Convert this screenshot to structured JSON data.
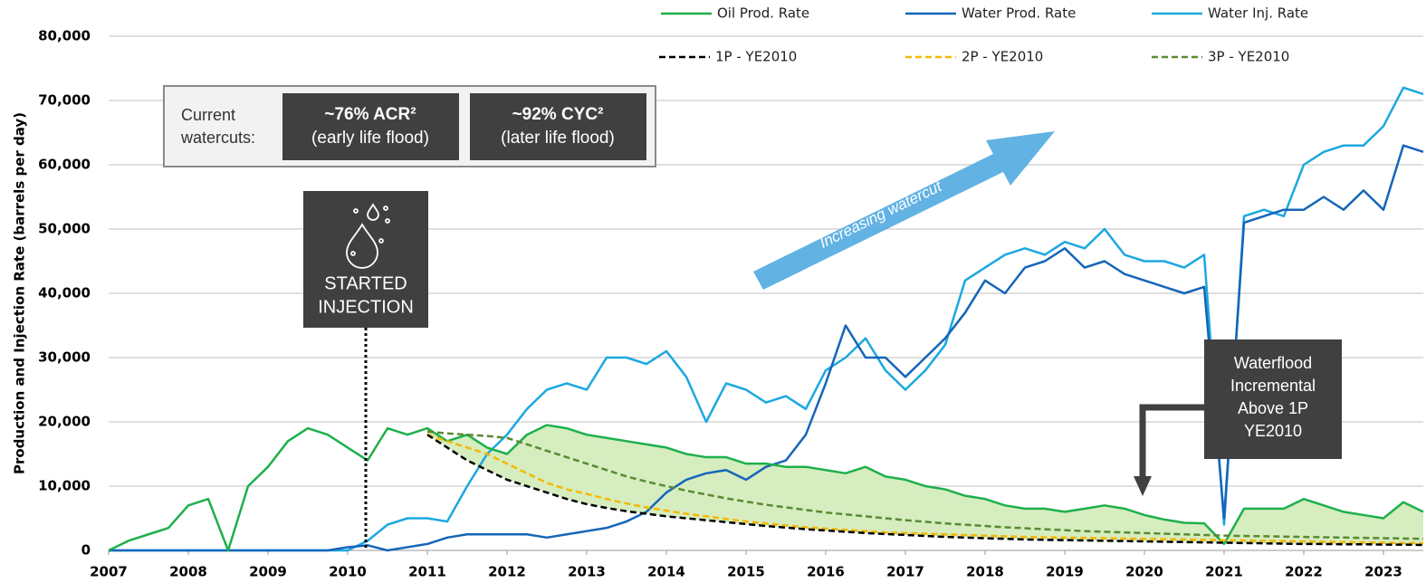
{
  "chart_data": {
    "type": "line",
    "y_label": "Production and Injection Rate (barrels per day)",
    "x": [
      2007,
      2007.25,
      2007.5,
      2007.75,
      2008,
      2008.25,
      2008.5,
      2008.75,
      2009,
      2009.25,
      2009.5,
      2009.75,
      2010,
      2010.25,
      2010.5,
      2010.75,
      2011,
      2011.25,
      2011.5,
      2011.75,
      2012,
      2012.25,
      2012.5,
      2012.75,
      2013,
      2013.25,
      2013.5,
      2013.75,
      2014,
      2014.25,
      2014.5,
      2014.75,
      2015,
      2015.25,
      2015.5,
      2015.75,
      2016,
      2016.25,
      2016.5,
      2016.75,
      2017,
      2017.25,
      2017.5,
      2017.75,
      2018,
      2018.25,
      2018.5,
      2018.75,
      2019,
      2019.25,
      2019.5,
      2019.75,
      2020,
      2020.25,
      2020.5,
      2020.75,
      2021,
      2021.25,
      2021.5,
      2021.75,
      2022,
      2022.25,
      2022.5,
      2022.75,
      2023,
      2023.25,
      2023.5
    ],
    "series": [
      {
        "name": "Oil Prod. Rate",
        "color": "#1db04b",
        "dashed": false,
        "values": [
          0,
          1500,
          2500,
          3500,
          7000,
          8000,
          0,
          10000,
          13000,
          17000,
          19000,
          18000,
          16000,
          14000,
          19000,
          18000,
          19000,
          17000,
          18000,
          16000,
          15000,
          18000,
          19500,
          19000,
          18000,
          17500,
          17000,
          16500,
          16000,
          15000,
          14500,
          14500,
          13500,
          13500,
          13000,
          13000,
          12500,
          12000,
          13000,
          11500,
          11000,
          10000,
          9500,
          8500,
          8000,
          7000,
          6500,
          6500,
          6000,
          6500,
          7000,
          6500,
          5500,
          4800,
          4300,
          4200,
          1000,
          6500,
          6500,
          6500,
          8000,
          7000,
          6000,
          5500,
          5000,
          7500,
          6000
        ]
      },
      {
        "name": "Water Prod. Rate",
        "color": "#1565b8",
        "dashed": false,
        "values": [
          0,
          0,
          0,
          0,
          0,
          0,
          0,
          0,
          0,
          0,
          0,
          0,
          500,
          800,
          0,
          500,
          1000,
          2000,
          2500,
          2500,
          2500,
          2500,
          2000,
          2500,
          3000,
          3500,
          4500,
          6000,
          9000,
          11000,
          12000,
          12500,
          11000,
          13000,
          14000,
          18000,
          26000,
          35000,
          30000,
          30000,
          27000,
          30000,
          33000,
          37000,
          42000,
          40000,
          44000,
          45000,
          47000,
          44000,
          45000,
          43000,
          42000,
          41000,
          40000,
          41000,
          5000,
          51000,
          52000,
          53000,
          53000,
          55000,
          53000,
          56000,
          53000,
          63000,
          62000
        ]
      },
      {
        "name": "Water Inj. Rate",
        "color": "#1ca8e0",
        "dashed": false,
        "values": [
          0,
          0,
          0,
          0,
          0,
          0,
          0,
          0,
          0,
          0,
          0,
          0,
          0,
          1500,
          4000,
          5000,
          5000,
          4500,
          10000,
          15000,
          18000,
          22000,
          25000,
          26000,
          25000,
          30000,
          30000,
          29000,
          31000,
          27000,
          20000,
          26000,
          25000,
          23000,
          24000,
          22000,
          28000,
          30000,
          33000,
          28000,
          25000,
          28000,
          32000,
          42000,
          44000,
          46000,
          47000,
          46000,
          48000,
          47000,
          50000,
          46000,
          45000,
          45000,
          44000,
          46000,
          4000,
          52000,
          53000,
          52000,
          60000,
          62000,
          63000,
          63000,
          66000,
          72000,
          71000
        ]
      },
      {
        "name": "1P - YE2010",
        "color": "#000000",
        "dashed": true,
        "values": [
          null,
          null,
          null,
          null,
          null,
          null,
          null,
          null,
          null,
          null,
          null,
          null,
          null,
          null,
          null,
          null,
          18000,
          16000,
          14000,
          12500,
          11000,
          10000,
          9000,
          8000,
          7200,
          6600,
          6100,
          5700,
          5300,
          5000,
          4700,
          4400,
          4100,
          3800,
          3550,
          3300,
          3100,
          2900,
          2700,
          2550,
          2400,
          2250,
          2100,
          2000,
          1900,
          1800,
          1700,
          1650,
          1600,
          1550,
          1500,
          1450,
          1400,
          1350,
          1300,
          1250,
          1200,
          1150,
          1100,
          1050,
          1000,
          1000,
          950,
          950,
          900,
          900,
          850
        ]
      },
      {
        "name": "2P - YE2010",
        "color": "#f5b800",
        "dashed": true,
        "values": [
          null,
          null,
          null,
          null,
          null,
          null,
          null,
          null,
          null,
          null,
          null,
          null,
          null,
          null,
          null,
          null,
          18000,
          17000,
          16000,
          15000,
          13500,
          12000,
          10500,
          9500,
          8800,
          8000,
          7300,
          6700,
          6200,
          5700,
          5300,
          4900,
          4500,
          4200,
          3900,
          3600,
          3400,
          3200,
          3000,
          2800,
          2700,
          2600,
          2500,
          2400,
          2300,
          2200,
          2100,
          2050,
          2000,
          1950,
          1900,
          1850,
          1800,
          1750,
          1700,
          1650,
          1600,
          1550,
          1500,
          1450,
          1400,
          1350,
          1300,
          1250,
          1200,
          1150,
          1100
        ]
      },
      {
        "name": "3P - YE2010",
        "color": "#5a8a32",
        "dashed": true,
        "values": [
          null,
          null,
          null,
          null,
          null,
          null,
          null,
          null,
          null,
          null,
          null,
          null,
          null,
          null,
          null,
          null,
          18500,
          18200,
          18000,
          17800,
          17500,
          16500,
          15500,
          14500,
          13500,
          12500,
          11500,
          10700,
          10000,
          9300,
          8700,
          8100,
          7600,
          7100,
          6700,
          6300,
          5900,
          5600,
          5300,
          5000,
          4700,
          4450,
          4200,
          4000,
          3800,
          3600,
          3450,
          3300,
          3150,
          3000,
          2900,
          2800,
          2700,
          2600,
          2500,
          2400,
          2300,
          2250,
          2200,
          2150,
          2100,
          2050,
          2000,
          1950,
          1900,
          1850,
          1800
        ]
      }
    ],
    "fill_color": "#d6edc0",
    "xlim": [
      2007,
      2023.5
    ],
    "xticks": [
      2007,
      2008,
      2009,
      2010,
      2011,
      2012,
      2013,
      2014,
      2015,
      2016,
      2017,
      2018,
      2019,
      2020,
      2021,
      2022,
      2023
    ],
    "ylim": [
      0,
      80000
    ],
    "yticks": [
      {
        "value": 0,
        "label": "0"
      },
      {
        "value": 10000,
        "label": "10,000"
      },
      {
        "value": 20000,
        "label": "20,000"
      },
      {
        "value": 30000,
        "label": "30,000"
      },
      {
        "value": 40000,
        "label": "40,000"
      },
      {
        "value": 50000,
        "label": "50,000"
      },
      {
        "value": 60000,
        "label": "60,000"
      },
      {
        "value": 70000,
        "label": "70,000"
      },
      {
        "value": 80000,
        "label": "80,000"
      }
    ],
    "grid": true,
    "watercuts_label": [
      "Current",
      "watercuts:"
    ],
    "watercut_boxes": [
      {
        "title": "~76% ACR²",
        "subtitle": "(early life flood)"
      },
      {
        "title": "~92% CYC²",
        "subtitle": "(later life flood)"
      }
    ],
    "injection_label": [
      "STARTED",
      "INJECTION"
    ],
    "arrow_label": "Increasing watercut",
    "waterflood_label": [
      "Waterflood",
      "Incremental",
      "Above 1P",
      "YE2010"
    ]
  }
}
